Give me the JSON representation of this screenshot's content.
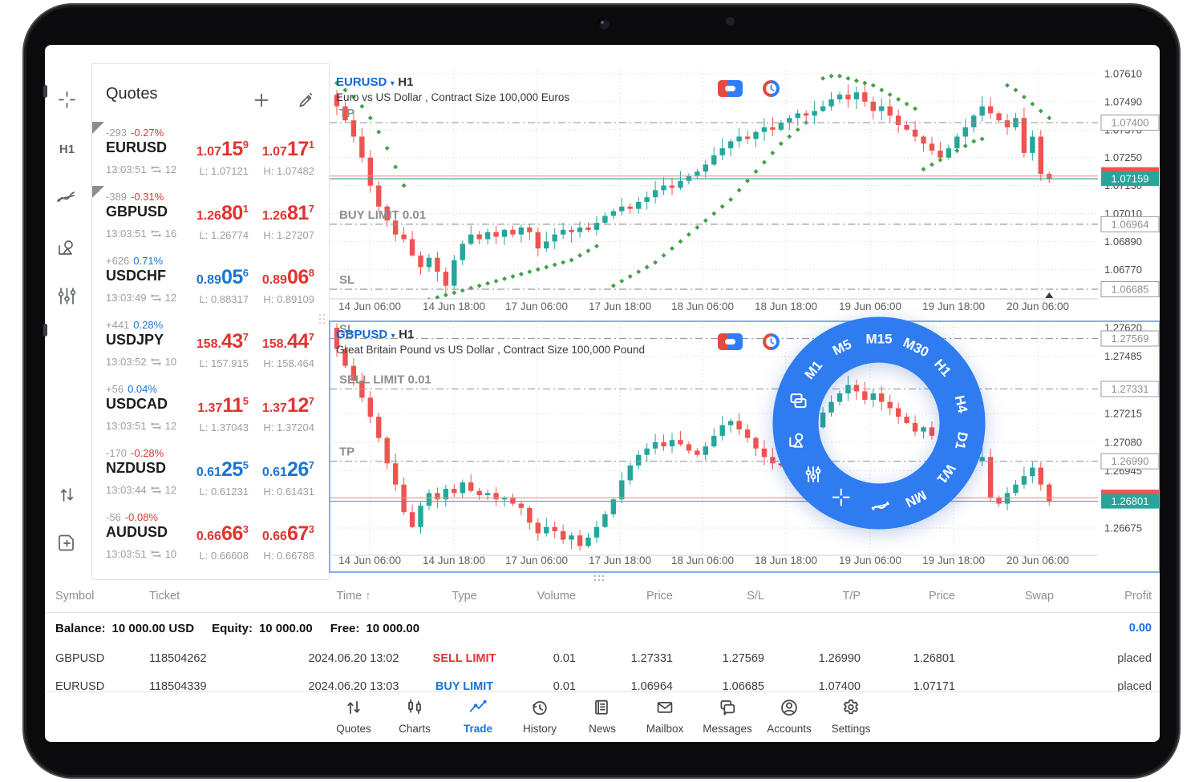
{
  "colors": {
    "price_red": "#e0342f",
    "price_blue": "#1976d2",
    "candle_up": "#26a69a",
    "candle_down": "#ef5350",
    "sar_green": "#43a047",
    "ring_blue": "#2e7cf0",
    "bid_line": "#3aa99e",
    "ask_line": "#f0908a",
    "accent": "#1a73e8",
    "level_gray": "#9b9b9b"
  },
  "sidebar": {
    "items": [
      {
        "name": "crosshair-icon"
      },
      {
        "name": "timeframe-button",
        "label": "H1"
      },
      {
        "name": "indicators-icon"
      },
      {
        "name": "objects-icon"
      },
      {
        "name": "chart-settings-icon"
      },
      {
        "name": "trade-updown-icon"
      },
      {
        "name": "new-order-icon"
      }
    ]
  },
  "quotes": {
    "title": "Quotes",
    "add_icon": "plus-icon",
    "edit_icon": "pencil-icon",
    "rows": [
      {
        "symbol": "EURUSD",
        "change": "-293",
        "change_pct": "-0.27%",
        "pct_dir": "red",
        "time": "13:03:51",
        "spread": "12",
        "bid": {
          "pre": "1.07",
          "big": "15",
          "sup": "9",
          "dir": "red"
        },
        "ask": {
          "pre": "1.07",
          "big": "17",
          "sup": "1",
          "dir": "red"
        },
        "low": "L: 1.07121",
        "high": "H: 1.07482",
        "corner": true
      },
      {
        "symbol": "GBPUSD",
        "change": "-389",
        "change_pct": "-0.31%",
        "pct_dir": "red",
        "time": "13:03:51",
        "spread": "16",
        "bid": {
          "pre": "1.26",
          "big": "80",
          "sup": "1",
          "dir": "red"
        },
        "ask": {
          "pre": "1.26",
          "big": "81",
          "sup": "7",
          "dir": "red"
        },
        "low": "L: 1.26774",
        "high": "H: 1.27207",
        "corner": true
      },
      {
        "symbol": "USDCHF",
        "change": "+626",
        "change_pct": "0.71%",
        "pct_dir": "blue",
        "time": "13:03:49",
        "spread": "12",
        "bid": {
          "pre": "0.89",
          "big": "05",
          "sup": "6",
          "dir": "blue"
        },
        "ask": {
          "pre": "0.89",
          "big": "06",
          "sup": "8",
          "dir": "red"
        },
        "low": "L: 0.88317",
        "high": "H: 0.89109",
        "corner": false
      },
      {
        "symbol": "USDJPY",
        "change": "+441",
        "change_pct": "0.28%",
        "pct_dir": "blue",
        "time": "13:03:52",
        "spread": "10",
        "bid": {
          "pre": "158.",
          "big": "43",
          "sup": "7",
          "dir": "red"
        },
        "ask": {
          "pre": "158.",
          "big": "44",
          "sup": "7",
          "dir": "red"
        },
        "low": "L: 157.915",
        "high": "H: 158.464",
        "corner": false
      },
      {
        "symbol": "USDCAD",
        "change": "+56",
        "change_pct": "0.04%",
        "pct_dir": "blue",
        "time": "13:03:51",
        "spread": "12",
        "bid": {
          "pre": "1.37",
          "big": "11",
          "sup": "5",
          "dir": "red"
        },
        "ask": {
          "pre": "1.37",
          "big": "12",
          "sup": "7",
          "dir": "red"
        },
        "low": "L: 1.37043",
        "high": "H: 1.37204",
        "corner": false
      },
      {
        "symbol": "NZDUSD",
        "change": "-170",
        "change_pct": "-0.28%",
        "pct_dir": "red",
        "time": "13:03:44",
        "spread": "12",
        "bid": {
          "pre": "0.61",
          "big": "25",
          "sup": "5",
          "dir": "blue"
        },
        "ask": {
          "pre": "0.61",
          "big": "26",
          "sup": "7",
          "dir": "blue"
        },
        "low": "L: 0.61231",
        "high": "H: 0.61431",
        "corner": false
      },
      {
        "symbol": "AUDUSD",
        "change": "-56",
        "change_pct": "-0.08%",
        "pct_dir": "red",
        "time": "13:03:51",
        "spread": "10",
        "bid": {
          "pre": "0.66",
          "big": "66",
          "sup": "3",
          "dir": "red"
        },
        "ask": {
          "pre": "0.66",
          "big": "67",
          "sup": "3",
          "dir": "red"
        },
        "low": "L: 0.66608",
        "high": "H: 0.66788",
        "corner": false
      }
    ]
  },
  "chart_data": [
    {
      "type": "candlestick",
      "symbol": "EURUSD",
      "caret": "▾",
      "timeframe": "H1",
      "subtitle": "Euro vs US Dollar , Contract Size 100,000 Euros",
      "icons": [
        "one-click-trading-icon",
        "market-sessions-icon"
      ],
      "x_labels": [
        "14 Jun 06:00",
        "14 Jun 18:00",
        "17 Jun 06:00",
        "17 Jun 18:00",
        "18 Jun 06:00",
        "18 Jun 18:00",
        "19 Jun 06:00",
        "19 Jun 18:00",
        "20 Jun 06:00"
      ],
      "y_ticks": [
        "1.07610",
        "1.07490",
        "1.07370",
        "1.07250",
        "1.07130",
        "1.07010",
        "1.06890",
        "1.06770"
      ],
      "ylim": [
        "1.07610",
        "1.06685"
      ],
      "levels": [
        {
          "label": "TP",
          "axis": "1.07400"
        },
        {
          "label": "BUY LIMIT 0.01",
          "axis": "1.06964"
        },
        {
          "label": "SL",
          "axis": "1.06685"
        }
      ],
      "current": {
        "bid": "1.07159",
        "ask": "1.07171"
      },
      "candles": {
        "first_open": 1.0752,
        "closes": [
          1.0747,
          1.0741,
          1.0734,
          1.0725,
          1.0713,
          1.0704,
          1.0698,
          1.0692,
          1.069,
          1.0683,
          1.0678,
          1.0682,
          1.0676,
          1.067,
          1.0681,
          1.0688,
          1.0692,
          1.069,
          1.0693,
          1.0691,
          1.0694,
          1.0692,
          1.0695,
          1.0693,
          1.0686,
          1.0689,
          1.0692,
          1.0694,
          1.0693,
          1.0695,
          1.0694,
          1.0697,
          1.07,
          1.0702,
          1.0704,
          1.0703,
          1.0706,
          1.0708,
          1.0711,
          1.0713,
          1.0712,
          1.0715,
          1.0717,
          1.0719,
          1.0722,
          1.0726,
          1.0729,
          1.0732,
          1.0734,
          1.0733,
          1.0736,
          1.0738,
          1.0737,
          1.074,
          1.0742,
          1.0744,
          1.0743,
          1.0745,
          1.0747,
          1.075,
          1.0752,
          1.075,
          1.0753,
          1.0749,
          1.0745,
          1.0747,
          1.0743,
          1.0739,
          1.0737,
          1.0734,
          1.0731,
          1.0728,
          1.0725,
          1.0729,
          1.0734,
          1.0738,
          1.0743,
          1.0747,
          1.0744,
          1.0741,
          1.0738,
          1.0742,
          1.0727,
          1.0734,
          1.0718,
          1.0716
        ]
      },
      "sar": [
        {
          "start": 0,
          "values": [
            1.0757,
            1.0754,
            1.0751,
            1.0747,
            1.0742,
            1.0736,
            1.0729,
            1.0721,
            1.0713
          ]
        },
        {
          "start": 10,
          "values": [
            1.0663,
            1.0664,
            1.0665,
            1.0666,
            1.0667,
            1.0668,
            1.0669,
            1.067,
            1.0671,
            1.0672,
            1.0673,
            1.0674,
            1.0675,
            1.0676,
            1.0677,
            1.0678,
            1.0679,
            1.068,
            1.0681,
            1.0683,
            1.0685,
            1.0687
          ]
        },
        {
          "start": 33,
          "values": [
            1.067,
            1.0672,
            1.0674,
            1.0676,
            1.0678,
            1.068,
            1.0683,
            1.0686,
            1.0689,
            1.0692,
            1.0695,
            1.0698,
            1.0701,
            1.0704,
            1.0707,
            1.0711,
            1.0715,
            1.0719,
            1.0723,
            1.0727,
            1.0731,
            1.0734,
            1.0737,
            1.074
          ]
        },
        {
          "start": 58,
          "values": [
            1.0759,
            1.076,
            1.076,
            1.0759,
            1.0758,
            1.0757,
            1.0756,
            1.0754,
            1.0752,
            1.075,
            1.0748,
            1.0746
          ]
        },
        {
          "start": 70,
          "values": [
            1.072,
            1.0722,
            1.0724,
            1.0726,
            1.0728,
            1.073,
            1.0732,
            1.0733
          ]
        },
        {
          "start": 80,
          "values": [
            1.0756,
            1.0754,
            1.0751,
            1.0748,
            1.0745,
            1.0742
          ]
        }
      ],
      "marker": true,
      "selected": false
    },
    {
      "type": "candlestick",
      "symbol": "GBPUSD",
      "caret": "▾",
      "timeframe": "H1",
      "subtitle": "Great Britain Pound vs US Dollar , Contract Size 100,000 Pound",
      "icons": [
        "one-click-trading-icon",
        "market-sessions-icon"
      ],
      "x_labels": [
        "14 Jun 06:00",
        "14 Jun 18:00",
        "17 Jun 06:00",
        "17 Jun 18:00",
        "18 Jun 06:00",
        "18 Jun 18:00",
        "19 Jun 06:00",
        "19 Jun 18:00",
        "20 Jun 06:00"
      ],
      "y_ticks": [
        "1.27620",
        "1.27485",
        "1.27215",
        "1.27080",
        "1.26945",
        "1.26675"
      ],
      "ylim": [
        "1.27620",
        "1.26675"
      ],
      "levels": [
        {
          "label": "SL",
          "axis": "1.27569"
        },
        {
          "label": "SELL LIMIT 0.01",
          "axis": "1.27331"
        },
        {
          "label": "TP",
          "axis": "1.26990"
        }
      ],
      "current": {
        "bid": "1.26801",
        "ask": "1.26817"
      },
      "candles": {
        "first_open": 1.2762,
        "closes": [
          1.2752,
          1.2744,
          1.2737,
          1.2729,
          1.272,
          1.271,
          1.2698,
          1.2688,
          1.2675,
          1.2668,
          1.2678,
          1.2684,
          1.2681,
          1.2686,
          1.2684,
          1.2689,
          1.2685,
          1.2683,
          1.2684,
          1.2681,
          1.2682,
          1.2679,
          1.2677,
          1.267,
          1.2665,
          1.2668,
          1.2666,
          1.2662,
          1.2664,
          1.2659,
          1.2663,
          1.2668,
          1.2674,
          1.2681,
          1.269,
          1.2697,
          1.2702,
          1.2705,
          1.2708,
          1.2706,
          1.2709,
          1.2707,
          1.2704,
          1.2702,
          1.2706,
          1.2711,
          1.2716,
          1.2718,
          1.2714,
          1.271,
          1.2705,
          1.2701,
          1.2698,
          1.2697,
          1.27,
          1.2704,
          1.2709,
          1.2715,
          1.2722,
          1.2727,
          1.2731,
          1.2735,
          1.2732,
          1.2728,
          1.2731,
          1.2727,
          1.2724,
          1.272,
          1.2717,
          1.2713,
          1.2715,
          1.2711,
          1.2708,
          1.2704,
          1.2706,
          1.2702,
          1.2699,
          1.2701,
          1.2682,
          1.2679,
          1.2684,
          1.2688,
          1.2692,
          1.2696,
          1.2688,
          1.268
        ]
      },
      "sar": [],
      "marker": false,
      "selected": true
    }
  ],
  "ring": {
    "timeframes": [
      {
        "label": "M1",
        "angle": -141
      },
      {
        "label": "M5",
        "angle": -116
      },
      {
        "label": "M15",
        "angle": -90
      },
      {
        "label": "M30",
        "angle": -64
      },
      {
        "label": "H1",
        "angle": -41
      },
      {
        "label": "H4",
        "angle": -13
      },
      {
        "label": "D1",
        "angle": 12
      },
      {
        "label": "W1",
        "angle": 37
      },
      {
        "label": "MN",
        "angle": 64
      }
    ],
    "tools": [
      {
        "name": "copy-icon",
        "angle": -165
      },
      {
        "name": "objects-icon",
        "angle": 168
      },
      {
        "name": "sliders-icon",
        "angle": 142
      },
      {
        "name": "crosshair-icon",
        "angle": 117
      },
      {
        "name": "indicator-icon",
        "angle": 89
      }
    ]
  },
  "trade_table": {
    "headers": [
      "Symbol",
      "Ticket",
      "Time ↑",
      "Type",
      "Volume",
      "Price",
      "S/L",
      "T/P",
      "Price",
      "Swap",
      "Profit"
    ],
    "balance": {
      "label1": "Balance:",
      "value1": "10 000.00 USD",
      "label2": "Equity:",
      "value2": "10 000.00",
      "label3": "Free:",
      "value3": "10 000.00",
      "profit": "0.00"
    },
    "rows": [
      {
        "symbol": "GBPUSD",
        "ticket": "118504262",
        "time": "2024.06.20 13:02",
        "type": "SELL LIMIT",
        "type_dir": "red",
        "volume": "0.01",
        "price": "1.27331",
        "sl": "1.27569",
        "tp": "1.26990",
        "price2": "1.26801",
        "swap": "",
        "profit": "placed"
      },
      {
        "symbol": "EURUSD",
        "ticket": "118504339",
        "time": "2024.06.20 13:03",
        "type": "BUY LIMIT",
        "type_dir": "blue",
        "volume": "0.01",
        "price": "1.06964",
        "sl": "1.06685",
        "tp": "1.07400",
        "price2": "1.07171",
        "swap": "",
        "profit": "placed"
      }
    ]
  },
  "nav": {
    "items": [
      {
        "label": "Quotes",
        "icon": "quotes-icon",
        "active": false
      },
      {
        "label": "Charts",
        "icon": "charts-icon",
        "active": false
      },
      {
        "label": "Trade",
        "icon": "trade-icon",
        "active": true
      },
      {
        "label": "History",
        "icon": "history-icon",
        "active": false
      },
      {
        "label": "News",
        "icon": "news-icon",
        "active": false
      },
      {
        "label": "Mailbox",
        "icon": "mailbox-icon",
        "active": false
      },
      {
        "label": "Messages",
        "icon": "messages-icon",
        "active": false
      },
      {
        "label": "Accounts",
        "icon": "accounts-icon",
        "active": false
      },
      {
        "label": "Settings",
        "icon": "settings-icon",
        "active": false
      }
    ]
  }
}
